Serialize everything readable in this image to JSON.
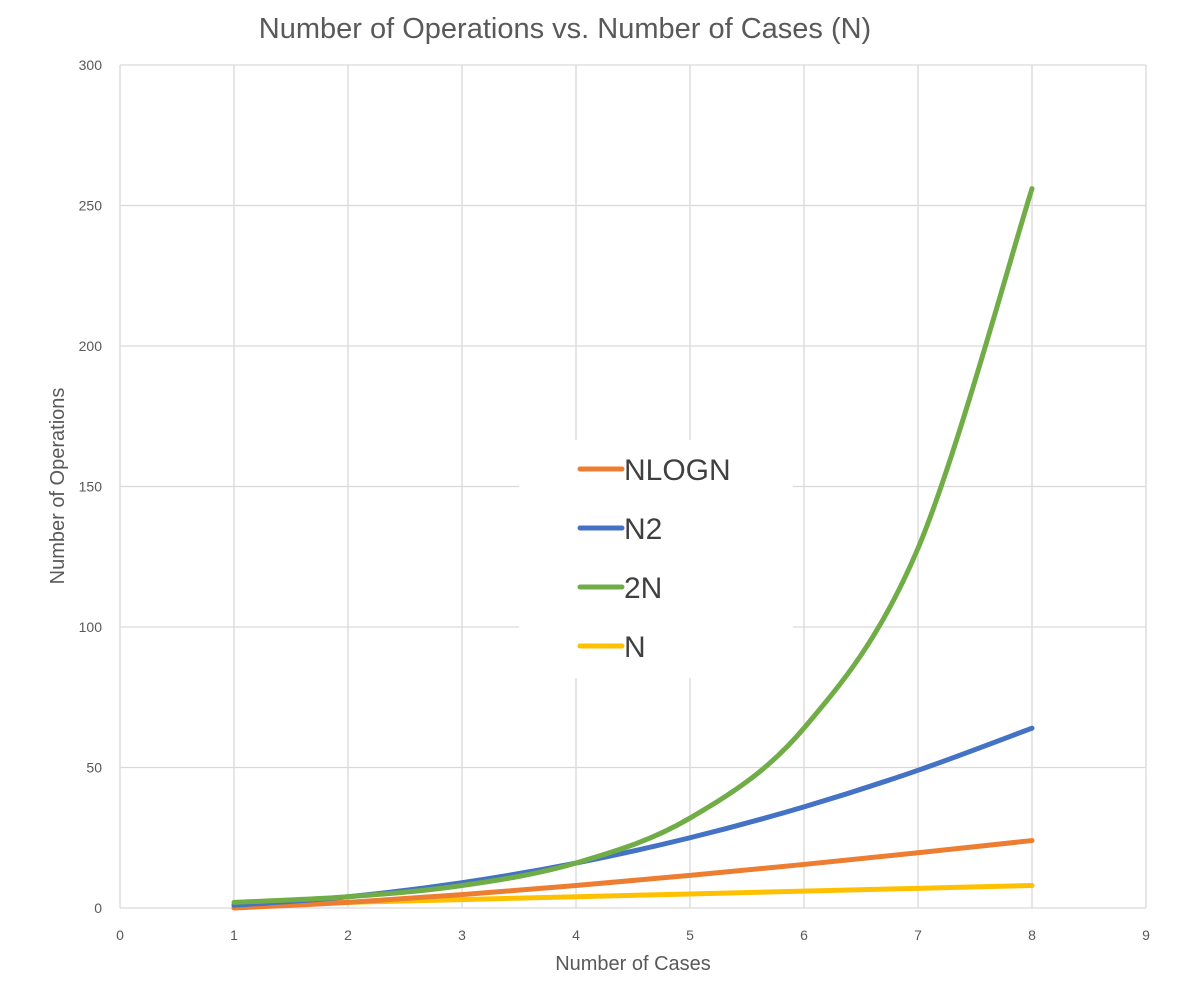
{
  "chart_data": {
    "type": "line",
    "title": "Number of Operations vs. Number of Cases (N)",
    "xlabel": "Number of Cases",
    "ylabel": "Number of Operations",
    "xlim": [
      0,
      9
    ],
    "ylim": [
      0,
      300
    ],
    "x_ticks": [
      "0",
      "1",
      "2",
      "3",
      "4",
      "5",
      "6",
      "7",
      "8",
      "9"
    ],
    "y_ticks": [
      "0",
      "50",
      "100",
      "150",
      "200",
      "250",
      "300"
    ],
    "grid": true,
    "smooth": true,
    "legend_position": "center",
    "x": [
      1,
      2,
      3,
      4,
      5,
      6,
      7,
      8
    ],
    "series": [
      {
        "name": "NLOGN",
        "color": "#ed7d31",
        "values": [
          0,
          2,
          4.75,
          8,
          11.6,
          15.5,
          19.65,
          24
        ]
      },
      {
        "name": "N2",
        "color": "#4472c4",
        "values": [
          1,
          4,
          9,
          16,
          25,
          36,
          49,
          64
        ]
      },
      {
        "name": "2N",
        "color": "#70ad47",
        "values": [
          2,
          4,
          8,
          16,
          32,
          64,
          128,
          256
        ]
      },
      {
        "name": "N",
        "color": "#ffc000",
        "values": [
          1,
          2,
          3,
          4,
          5,
          6,
          7,
          8
        ]
      }
    ]
  }
}
